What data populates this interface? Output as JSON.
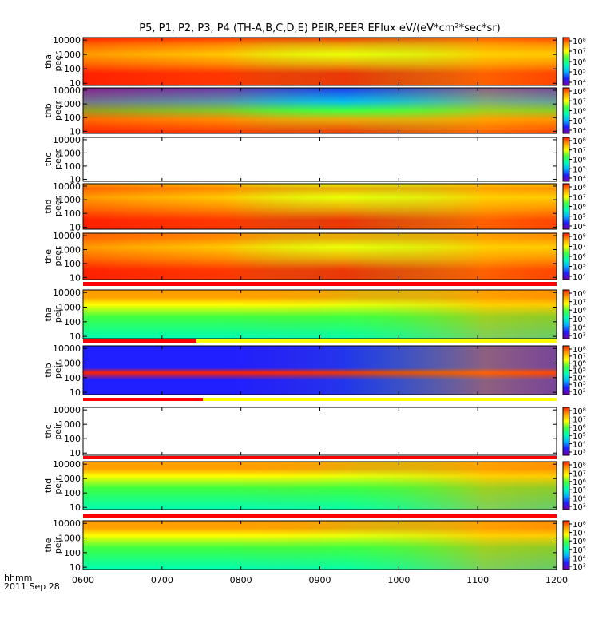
{
  "title": "P5, P1, P2, P3, P4 (TH-A,B,C,D,E) PEIR,PEER EFlux eV/(eV*cm²*sec*sr)",
  "footer": {
    "time_label": "hhmm",
    "date_label": "2011 Sep 28"
  },
  "colors": {
    "colormap": [
      "#7a00a8",
      "#1f1fff",
      "#00b4ff",
      "#00ffb4",
      "#40ff40",
      "#ffff00",
      "#ffa000",
      "#ff2000"
    ],
    "status_bar_red": "#ff0000",
    "status_bar_yellow": "#ffff00"
  },
  "chart_data": {
    "type": "heatmap",
    "x_ticks": [
      "0600",
      "0700",
      "0800",
      "0900",
      "1000",
      "1100",
      "1200"
    ],
    "xlim": [
      "0600",
      "1200"
    ],
    "y_scale": "log",
    "y_ticks": [
      "10",
      "100",
      "1000",
      "10000"
    ],
    "panels": [
      {
        "label": [
          "tha",
          "peer"
        ],
        "empty": false,
        "cbar_ticks": [
          "10⁸",
          "10⁷",
          "10⁶",
          "10⁵",
          "10⁴"
        ]
      },
      {
        "label": [
          "thb",
          "peer"
        ],
        "empty": false,
        "cbar_ticks": [
          "10⁸",
          "10⁷",
          "10⁶",
          "10⁵",
          "10⁴"
        ]
      },
      {
        "label": [
          "thc",
          "peer"
        ],
        "empty": true,
        "cbar_ticks": [
          "10⁸",
          "10⁷",
          "10⁶",
          "10⁵",
          "10⁴"
        ]
      },
      {
        "label": [
          "thd",
          "peer"
        ],
        "empty": false,
        "cbar_ticks": [
          "10⁸",
          "10⁷",
          "10⁶",
          "10⁵",
          "10⁴"
        ]
      },
      {
        "label": [
          "the",
          "peer"
        ],
        "empty": false,
        "cbar_ticks": [
          "10⁸",
          "10⁷",
          "10⁶",
          "10⁵",
          "10⁴"
        ]
      },
      {
        "label": [
          "tha",
          "peir"
        ],
        "empty": false,
        "cbar_ticks": [
          "10⁸",
          "10⁷",
          "10⁶",
          "10⁵",
          "10⁴",
          "10³"
        ]
      },
      {
        "label": [
          "thb",
          "peir"
        ],
        "empty": false,
        "cbar_ticks": [
          "10⁸",
          "10⁷",
          "10⁶",
          "10⁵",
          "10⁴",
          "10³",
          "10²"
        ]
      },
      {
        "label": [
          "thc",
          "peir"
        ],
        "empty": true,
        "cbar_ticks": [
          "10⁸",
          "10⁷",
          "10⁶",
          "10⁵",
          "10⁴",
          "10³"
        ]
      },
      {
        "label": [
          "thd",
          "peir"
        ],
        "empty": false,
        "cbar_ticks": [
          "10⁸",
          "10⁷",
          "10⁶",
          "10⁵",
          "10⁴",
          "10³"
        ]
      },
      {
        "label": [
          "the",
          "peir"
        ],
        "empty": false,
        "cbar_ticks": [
          "10⁸",
          "10⁷",
          "10⁶",
          "10⁵",
          "10⁴",
          "10³"
        ]
      }
    ]
  }
}
